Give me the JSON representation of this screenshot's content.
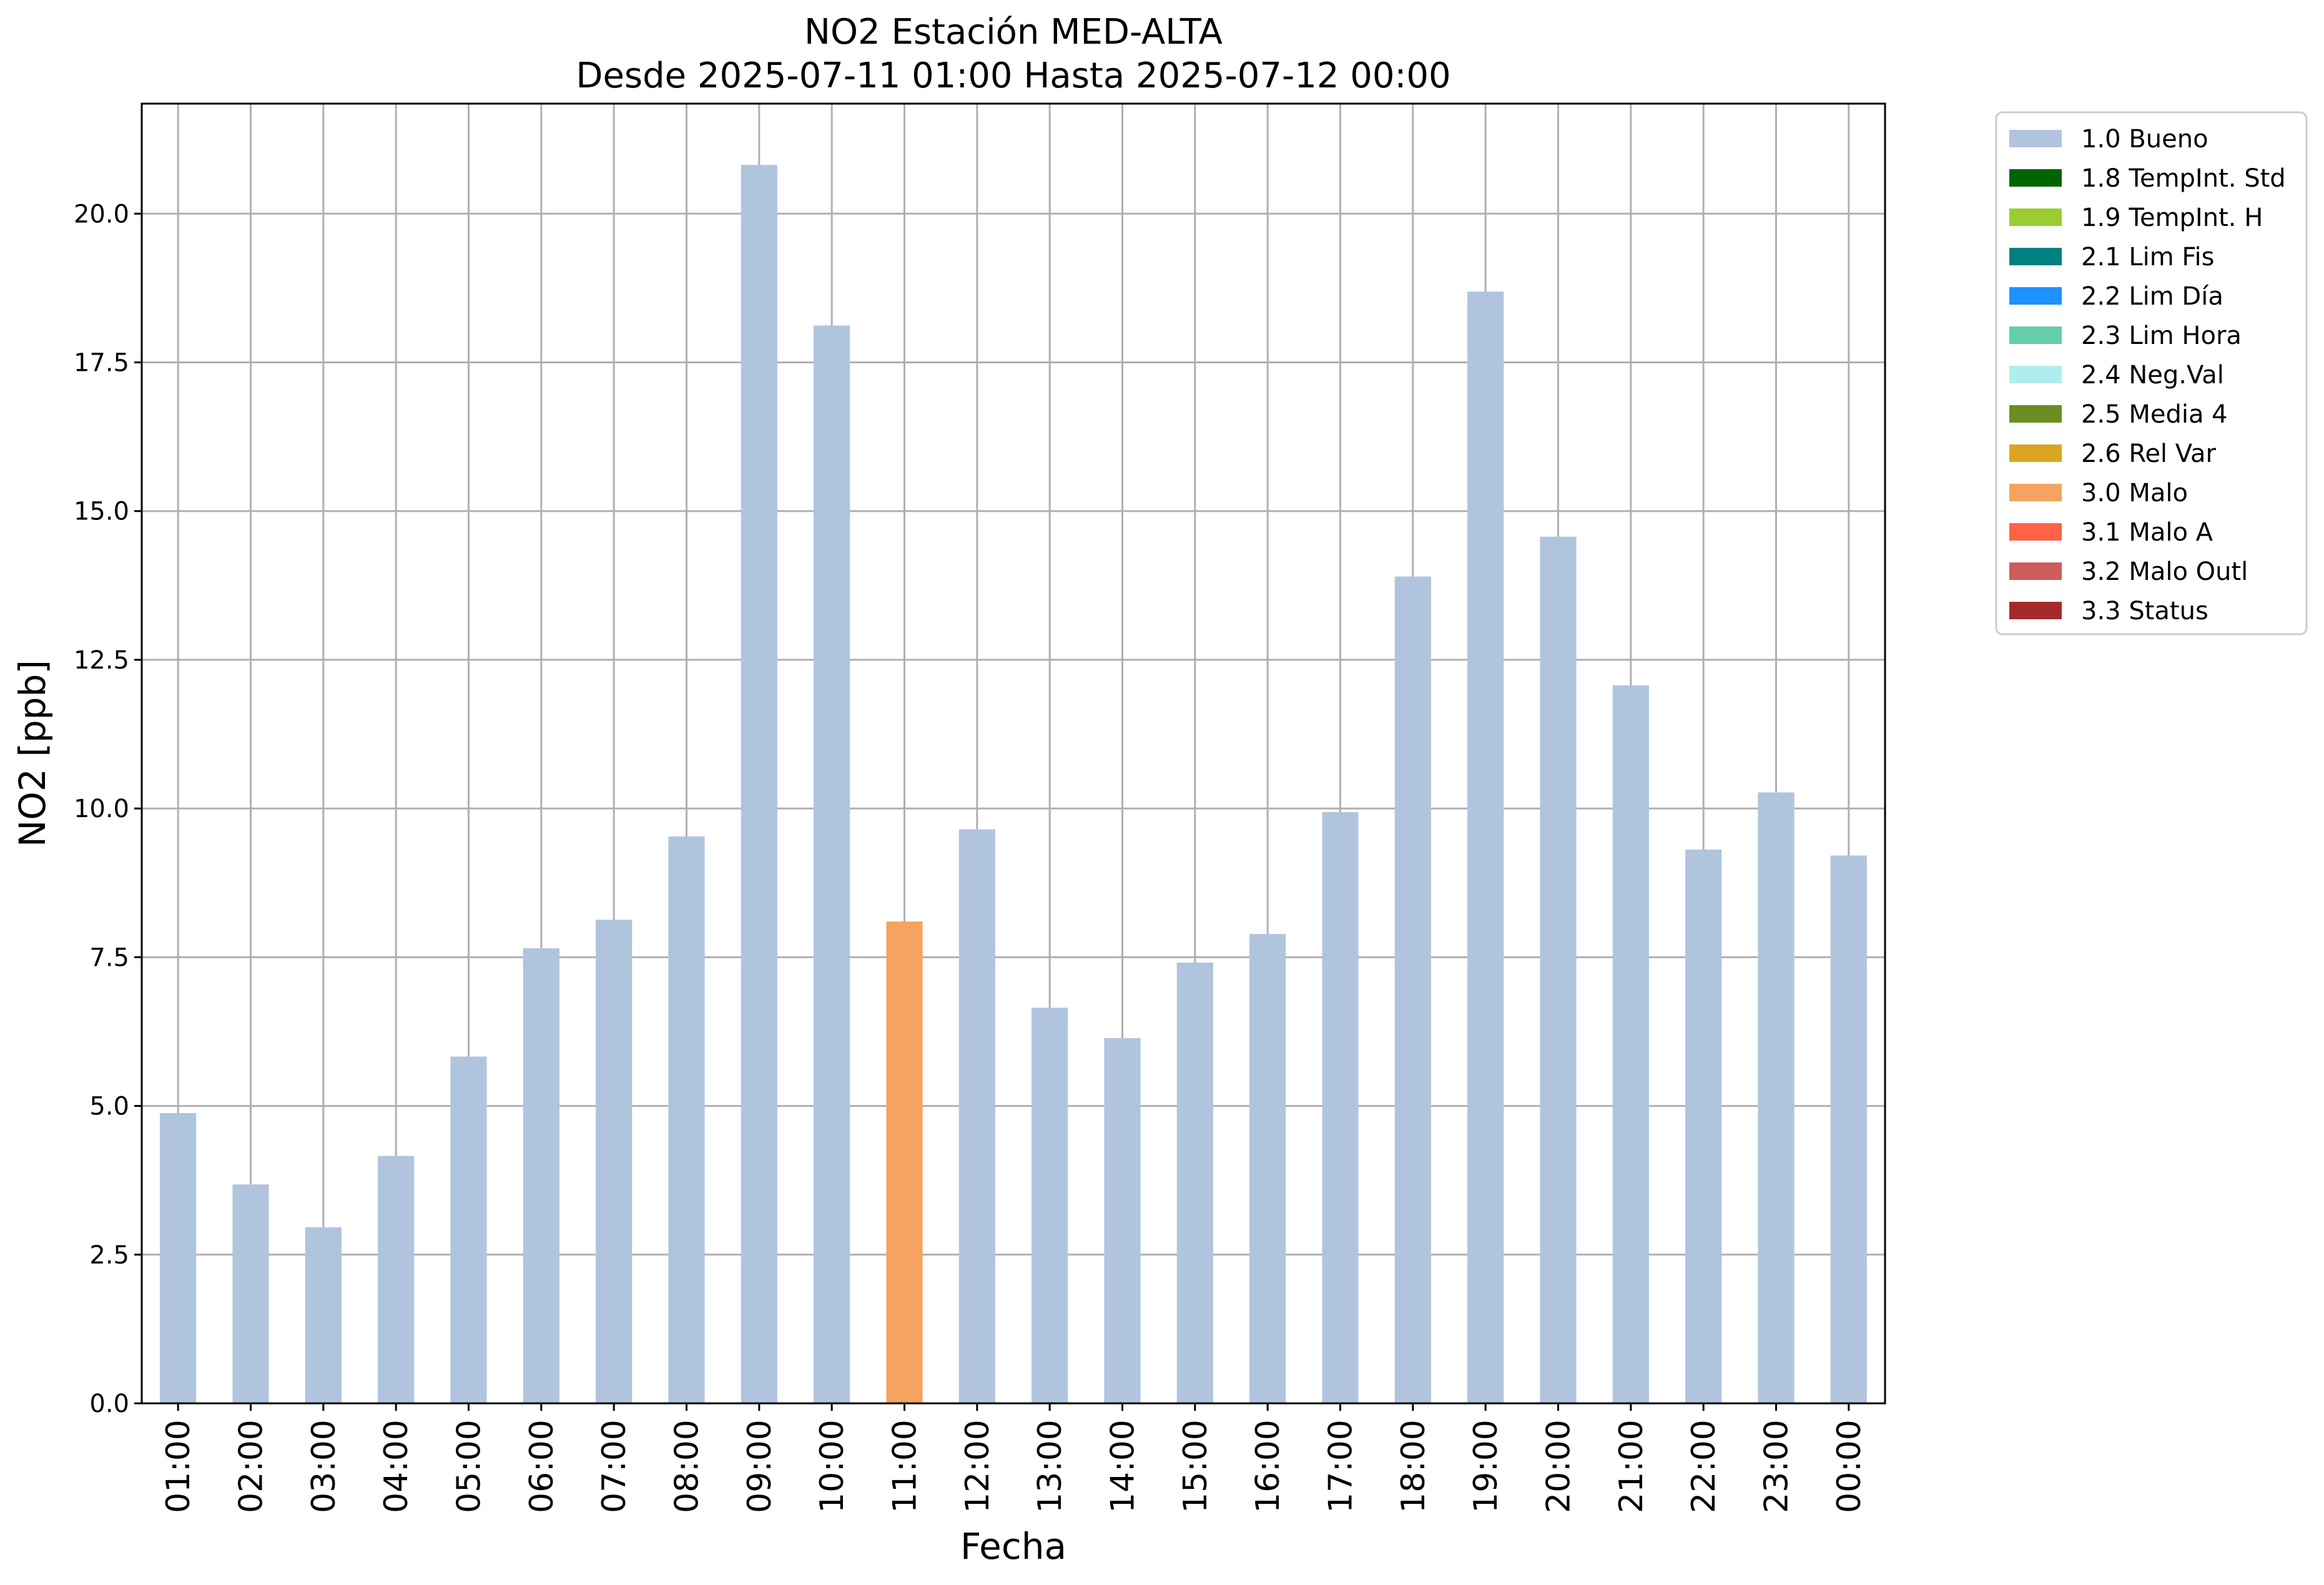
{
  "chart_data": {
    "type": "bar",
    "title_line1": "NO2 Estación MED-ALTA",
    "title_line2": "Desde 2025-07-11 01:00 Hasta 2025-07-12 00:00",
    "xlabel": "Fecha",
    "ylabel": "NO2 [ppb]",
    "ylim": [
      0,
      21.85
    ],
    "yticks": [
      "0.0",
      "2.5",
      "5.0",
      "7.5",
      "10.0",
      "12.5",
      "15.0",
      "17.5",
      "20.0"
    ],
    "grid": true,
    "legend_position": "outside-top-right",
    "categories": [
      "01:00",
      "02:00",
      "03:00",
      "04:00",
      "05:00",
      "06:00",
      "07:00",
      "08:00",
      "09:00",
      "10:00",
      "11:00",
      "12:00",
      "13:00",
      "14:00",
      "15:00",
      "16:00",
      "17:00",
      "18:00",
      "19:00",
      "20:00",
      "21:00",
      "22:00",
      "23:00",
      "00:00"
    ],
    "values": [
      4.88,
      3.68,
      2.96,
      4.16,
      5.83,
      7.65,
      8.13,
      9.53,
      20.82,
      18.12,
      8.1,
      9.65,
      6.65,
      6.14,
      7.41,
      7.89,
      9.94,
      13.9,
      18.69,
      14.57,
      12.07,
      9.31,
      10.27,
      9.21
    ],
    "flags": [
      "1.0",
      "1.0",
      "1.0",
      "1.0",
      "1.0",
      "1.0",
      "1.0",
      "1.0",
      "1.0",
      "1.0",
      "3.0",
      "1.0",
      "1.0",
      "1.0",
      "1.0",
      "1.0",
      "1.0",
      "1.0",
      "1.0",
      "1.0",
      "1.0",
      "1.0",
      "1.0",
      "1.0"
    ],
    "legend": [
      {
        "code": "1.0",
        "label": "1.0 Bueno",
        "color": "#b0c4de"
      },
      {
        "code": "1.8",
        "label": "1.8 TempInt. Std",
        "color": "#006400"
      },
      {
        "code": "1.9",
        "label": "1.9 TempInt. H",
        "color": "#9acd32"
      },
      {
        "code": "2.1",
        "label": "2.1 Lim Fis",
        "color": "#008080"
      },
      {
        "code": "2.2",
        "label": "2.2 Lim Día",
        "color": "#1e90ff"
      },
      {
        "code": "2.3",
        "label": "2.3 Lim Hora",
        "color": "#66cdaa"
      },
      {
        "code": "2.4",
        "label": "2.4 Neg.Val",
        "color": "#afeeee"
      },
      {
        "code": "2.5",
        "label": "2.5 Media 4",
        "color": "#6b8e23"
      },
      {
        "code": "2.6",
        "label": "2.6 Rel Var",
        "color": "#daa520"
      },
      {
        "code": "3.0",
        "label": "3.0 Malo",
        "color": "#f4a460"
      },
      {
        "code": "3.1",
        "label": "3.1 Malo A",
        "color": "#ff6347"
      },
      {
        "code": "3.2",
        "label": "3.2 Malo Outl",
        "color": "#cd5c5c"
      },
      {
        "code": "3.3",
        "label": "3.3 Status",
        "color": "#a52a2a"
      }
    ]
  }
}
